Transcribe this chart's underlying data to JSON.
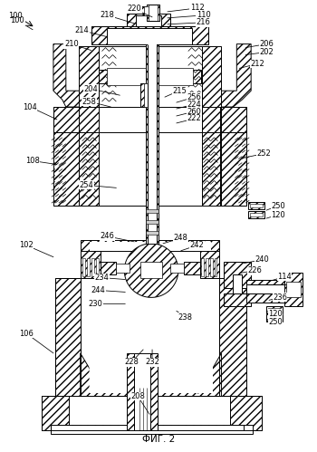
{
  "bg_color": "#ffffff",
  "fig_label": "ФИГ. 2",
  "annotations": [
    [
      "100",
      18,
      478,
      35,
      468,
      true
    ],
    [
      "112",
      218,
      492,
      185,
      488,
      false
    ],
    [
      "110",
      225,
      484,
      185,
      481,
      false
    ],
    [
      "216",
      225,
      476,
      185,
      474,
      false
    ],
    [
      "206",
      295,
      452,
      272,
      448,
      false
    ],
    [
      "202",
      295,
      443,
      272,
      440,
      false
    ],
    [
      "220",
      148,
      491,
      168,
      482,
      false
    ],
    [
      "218",
      118,
      484,
      148,
      475,
      false
    ],
    [
      "214",
      90,
      467,
      118,
      460,
      false
    ],
    [
      "210",
      78,
      452,
      100,
      445,
      false
    ],
    [
      "212",
      285,
      430,
      265,
      425,
      false
    ],
    [
      "104",
      32,
      382,
      62,
      368,
      false
    ],
    [
      "204",
      100,
      402,
      132,
      395,
      false
    ],
    [
      "258",
      98,
      388,
      122,
      382,
      false
    ],
    [
      "215",
      198,
      400,
      182,
      393,
      false
    ],
    [
      "256",
      215,
      393,
      195,
      387,
      false
    ],
    [
      "224",
      215,
      385,
      195,
      380,
      false
    ],
    [
      "260",
      215,
      377,
      195,
      372,
      false
    ],
    [
      "222",
      215,
      369,
      195,
      364,
      false
    ],
    [
      "108",
      35,
      322,
      62,
      318,
      false
    ],
    [
      "252",
      292,
      330,
      268,
      325,
      false
    ],
    [
      "254",
      95,
      295,
      128,
      292,
      false
    ],
    [
      "250",
      308,
      272,
      295,
      267,
      false
    ],
    [
      "120",
      308,
      262,
      295,
      258,
      false
    ],
    [
      "246",
      118,
      238,
      148,
      232,
      false
    ],
    [
      "248",
      200,
      236,
      180,
      230,
      false
    ],
    [
      "242",
      218,
      228,
      200,
      222,
      false
    ],
    [
      "240",
      290,
      212,
      270,
      208,
      false
    ],
    [
      "102",
      28,
      228,
      58,
      215,
      false
    ],
    [
      "226",
      282,
      200,
      265,
      197,
      false
    ],
    [
      "114",
      315,
      193,
      298,
      188,
      false
    ],
    [
      "234",
      112,
      192,
      138,
      190,
      false
    ],
    [
      "244",
      108,
      178,
      138,
      176,
      false
    ],
    [
      "230",
      105,
      163,
      138,
      163,
      false
    ],
    [
      "236",
      310,
      170,
      298,
      167,
      false
    ],
    [
      "120",
      305,
      152,
      295,
      155,
      false
    ],
    [
      "250",
      305,
      143,
      295,
      146,
      false
    ],
    [
      "238",
      205,
      148,
      195,
      155,
      false
    ],
    [
      "228",
      145,
      98,
      158,
      112,
      false
    ],
    [
      "232",
      168,
      98,
      168,
      112,
      false
    ],
    [
      "106",
      28,
      130,
      58,
      108,
      false
    ],
    [
      "208",
      152,
      60,
      165,
      40,
      false
    ]
  ]
}
